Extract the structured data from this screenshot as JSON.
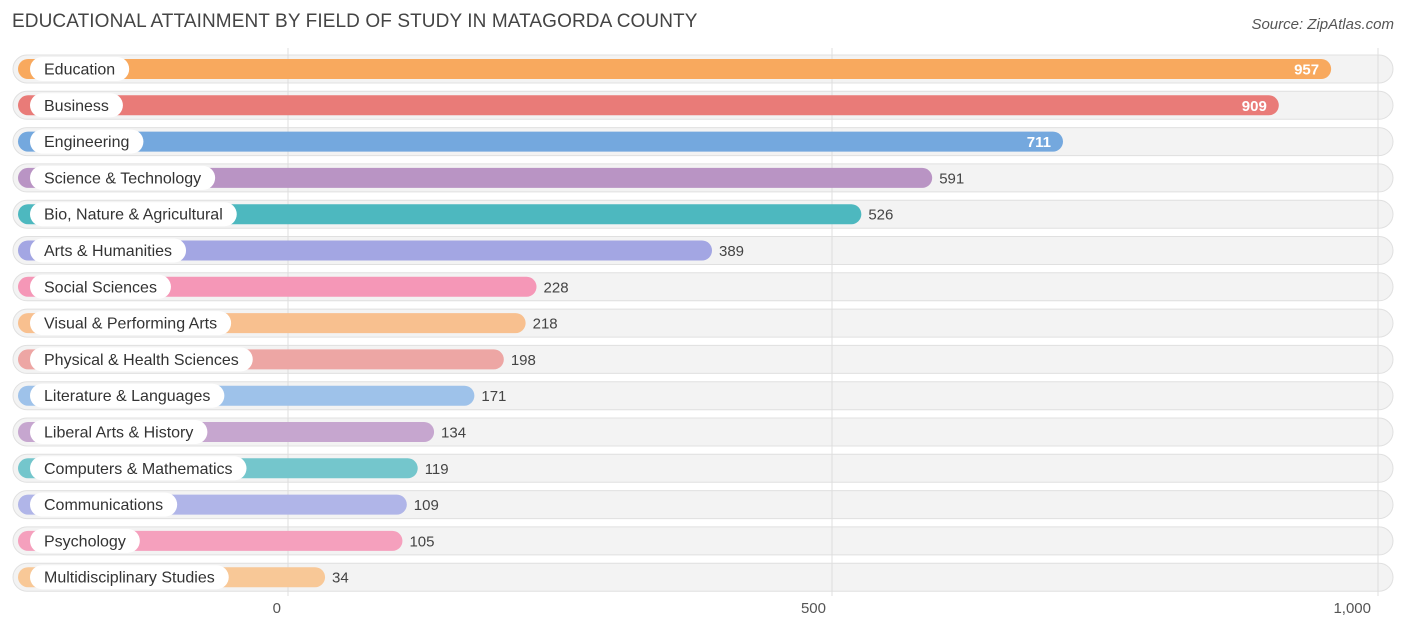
{
  "chart_data": {
    "type": "bar",
    "orientation": "horizontal",
    "title": "EDUCATIONAL ATTAINMENT BY FIELD OF STUDY IN MATAGORDA COUNTY",
    "source": "Source: ZipAtlas.com",
    "categories": [
      "Education",
      "Business",
      "Engineering",
      "Science & Technology",
      "Bio, Nature & Agricultural",
      "Arts & Humanities",
      "Social Sciences",
      "Visual & Performing Arts",
      "Physical & Health Sciences",
      "Literature & Languages",
      "Liberal Arts & History",
      "Computers & Mathematics",
      "Communications",
      "Psychology",
      "Multidisciplinary Studies"
    ],
    "values": [
      957,
      909,
      711,
      591,
      526,
      389,
      228,
      218,
      198,
      171,
      134,
      119,
      109,
      105,
      34
    ],
    "value_labels": [
      "957",
      "909",
      "711",
      "591",
      "526",
      "389",
      "228",
      "218",
      "198",
      "171",
      "134",
      "119",
      "109",
      "105",
      "34"
    ],
    "colors": [
      "#f8a95e",
      "#e97b78",
      "#74a8de",
      "#b994c4",
      "#4db8bf",
      "#a3a6e3",
      "#f597b7",
      "#f8c08f",
      "#eda6a4",
      "#9ec2ea",
      "#c6a6cf",
      "#74c6cc",
      "#b0b5e8",
      "#f5a0bd",
      "#f8c897"
    ],
    "xlim": [
      0,
      1000
    ],
    "xticks": [
      0,
      500,
      1000
    ],
    "xtick_labels": [
      "0",
      "500",
      "1,000"
    ],
    "grid": true
  }
}
